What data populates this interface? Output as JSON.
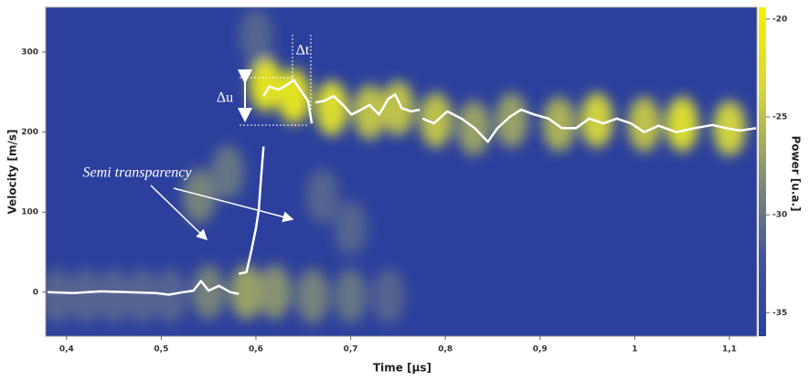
{
  "chart_data": {
    "type": "heatmap",
    "xlabel": "Time [µs]",
    "ylabel": "Velocity [m/s]",
    "colorbar_label": "Power [u.a.]",
    "xlim": [
      0.378,
      1.129
    ],
    "ylim": [
      -55,
      356
    ],
    "xticks": [
      {
        "value": 0.4,
        "label": "0,4"
      },
      {
        "value": 0.5,
        "label": "0,5"
      },
      {
        "value": 0.6,
        "label": "0,6"
      },
      {
        "value": 0.7,
        "label": "0,7"
      },
      {
        "value": 0.8,
        "label": "0,8"
      },
      {
        "value": 0.9,
        "label": "0,9"
      },
      1,
      {
        "value": 1.1,
        "label": "1,1"
      }
    ],
    "yticks": [
      0,
      100,
      200,
      300
    ],
    "clim": [
      -36.2,
      -19.4
    ],
    "cticks": [
      -20,
      -25,
      -30,
      -35
    ],
    "colormap": [
      "#2c3f9c",
      "#44569a",
      "#8a9470",
      "#d6d83a",
      "#f4f200"
    ],
    "heatmap": {
      "x": [
        0.39,
        0.42,
        0.45,
        0.48,
        0.51,
        0.55,
        0.59,
        0.62,
        0.66,
        0.7,
        0.74,
        0.61,
        0.64,
        0.68,
        0.72,
        0.75,
        0.79,
        0.83,
        0.87,
        0.92,
        0.96,
        1.01,
        1.05,
        1.1,
        0.54,
        0.57,
        0.67,
        0.7,
        0.6
      ],
      "y": [
        -5,
        -5,
        -5,
        -5,
        -5,
        0,
        0,
        0,
        -5,
        -5,
        -5,
        260,
        245,
        230,
        225,
        230,
        215,
        205,
        215,
        210,
        215,
        210,
        210,
        205,
        120,
        150,
        120,
        80,
        320
      ],
      "values": [
        -31,
        -31,
        -31,
        -31,
        -31,
        -29,
        -27,
        -28,
        -29,
        -30,
        -31,
        -22,
        -22,
        -23,
        -25,
        -25,
        -25,
        -27,
        -27,
        -26,
        -24,
        -25,
        -23,
        -24,
        -29,
        -30,
        -31,
        -31,
        -31
      ]
    },
    "series": [
      {
        "type": "line",
        "color": "#ffffff",
        "x": [
          0.38,
          0.407,
          0.436,
          0.465,
          0.494,
          0.508,
          0.523,
          0.534,
          0.542,
          0.55,
          0.561,
          0.573,
          0.582,
          null,
          0.582,
          0.59,
          0.595,
          0.6,
          0.603,
          0.605,
          0.608,
          null,
          0.608,
          0.614,
          0.624,
          0.634,
          0.64,
          0.648,
          0.655,
          0.659,
          null,
          0.663,
          0.672,
          0.682,
          0.692,
          0.701,
          0.711,
          0.72,
          0.73,
          0.74,
          0.747,
          0.754,
          0.764,
          0.773,
          null,
          0.776,
          0.788,
          0.802,
          0.817,
          0.831,
          0.845,
          0.855,
          0.868,
          0.88,
          0.894,
          0.909,
          0.923,
          0.938,
          0.952,
          0.967,
          0.981,
          0.996,
          1.01,
          1.025,
          1.044,
          1.063,
          1.082,
          1.097,
          1.111,
          1.128
        ],
        "y": [
          0,
          -1,
          1,
          0,
          -1,
          -3,
          0,
          2,
          14,
          2,
          8,
          0,
          -2,
          null,
          23,
          25,
          51,
          80,
          103,
          137,
          182,
          null,
          245,
          257,
          253,
          260,
          265,
          251,
          239,
          211,
          null,
          237,
          239,
          245,
          234,
          222,
          228,
          234,
          222,
          242,
          247,
          230,
          226,
          228,
          null,
          217,
          211,
          226,
          217,
          205,
          188,
          205,
          219,
          228,
          222,
          217,
          205,
          205,
          217,
          211,
          217,
          211,
          200,
          208,
          200,
          205,
          209,
          205,
          202,
          205
        ]
      }
    ],
    "annotations": {
      "semi": "Semi transparency",
      "du": "Δu",
      "dt": "Δt"
    }
  }
}
